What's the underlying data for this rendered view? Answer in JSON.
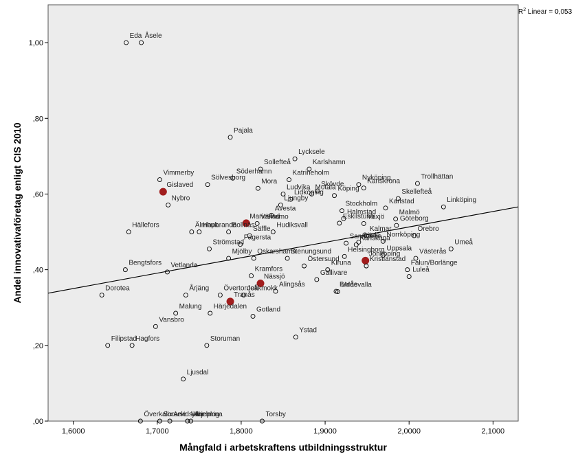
{
  "chart_data": {
    "type": "scatter",
    "title": "",
    "xlabel": "Mångfald i arbetskraftens utbildningsstruktur",
    "ylabel": "Andel innovativaföretag enligt CIS 2010",
    "xlim": [
      1.57,
      2.13
    ],
    "ylim": [
      0.0,
      1.1
    ],
    "x_ticks": [
      1.6,
      1.7,
      1.8,
      1.9,
      2.0,
      2.1
    ],
    "x_tick_labels": [
      "1,6000",
      "1,7000",
      "1,8000",
      "1,9000",
      "2,0000",
      "2,1000"
    ],
    "y_ticks": [
      0.0,
      0.2,
      0.4,
      0.6,
      0.8,
      1.0
    ],
    "y_tick_labels": [
      ",00",
      ",20",
      ",40",
      ",60",
      ",80",
      "1,00"
    ],
    "grid": false,
    "fit_line": {
      "type": "linear",
      "r2_text": "R² Linear = 0,053",
      "r2_sup": "2",
      "r2_rest": " Linear = 0,053",
      "r2_prefix": "R",
      "endpoints": [
        [
          1.57,
          0.338
        ],
        [
          2.13,
          0.566
        ]
      ]
    },
    "points": [
      {
        "label": "Eda",
        "x": 1.663,
        "y": 1.0
      },
      {
        "label": "Åsele",
        "x": 1.681,
        "y": 1.0
      },
      {
        "label": "Pajala",
        "x": 1.787,
        "y": 0.75
      },
      {
        "label": "Vimmerby",
        "x": 1.703,
        "y": 0.638
      },
      {
        "label": "Gislaved",
        "x": 1.707,
        "y": 0.606,
        "highlight": true
      },
      {
        "label": "Nybro",
        "x": 1.713,
        "y": 0.571
      },
      {
        "label": "Söderhamn",
        "x": 1.79,
        "y": 0.642
      },
      {
        "label": "Sölvesborg",
        "x": 1.76,
        "y": 0.625
      },
      {
        "label": "Sollefteå",
        "x": 1.823,
        "y": 0.666
      },
      {
        "label": "Mora",
        "x": 1.82,
        "y": 0.615
      },
      {
        "label": "Lycksele",
        "x": 1.864,
        "y": 0.693
      },
      {
        "label": "Karlshamn",
        "x": 1.881,
        "y": 0.666
      },
      {
        "label": "Katrineholm",
        "x": 1.857,
        "y": 0.638
      },
      {
        "label": "Ludvika",
        "x": 1.85,
        "y": 0.6
      },
      {
        "label": "Ljungby",
        "x": 1.847,
        "y": 0.571
      },
      {
        "label": "Skövde",
        "x": 1.891,
        "y": 0.608
      },
      {
        "label": "Motala",
        "x": 1.884,
        "y": 0.6
      },
      {
        "label": "Nyköping",
        "x": 1.94,
        "y": 0.625
      },
      {
        "label": "Karlskrona",
        "x": 1.946,
        "y": 0.616
      },
      {
        "label": "Köping",
        "x": 1.911,
        "y": 0.596
      },
      {
        "label": "Trollhättan",
        "x": 2.01,
        "y": 0.628
      },
      {
        "label": "Skellefteå",
        "x": 1.987,
        "y": 0.588
      },
      {
        "label": "Linköping",
        "x": 2.041,
        "y": 0.566
      },
      {
        "label": "Lidköping",
        "x": 1.859,
        "y": 0.586
      },
      {
        "label": "Stockholm",
        "x": 1.92,
        "y": 0.556
      },
      {
        "label": "Karlstad",
        "x": 1.972,
        "y": 0.563
      },
      {
        "label": "Avesta",
        "x": 1.836,
        "y": 0.544
      },
      {
        "label": "Halmstad",
        "x": 1.922,
        "y": 0.535
      },
      {
        "label": "Malmö",
        "x": 1.984,
        "y": 0.534
      },
      {
        "label": "Värnamo",
        "x": 1.819,
        "y": 0.522
      },
      {
        "label": "Mariestad",
        "x": 1.806,
        "y": 0.523,
        "highlight": true
      },
      {
        "label": "Hudiksvall",
        "x": 1.838,
        "y": 0.5
      },
      {
        "label": "Göteborg",
        "x": 1.985,
        "y": 0.517
      },
      {
        "label": "Hällefors",
        "x": 1.666,
        "y": 0.5
      },
      {
        "label": "Älmhult",
        "x": 1.741,
        "y": 0.5
      },
      {
        "label": "Bollnäs",
        "x": 1.785,
        "y": 0.5
      },
      {
        "label": "Haparanda",
        "x": 1.75,
        "y": 0.5
      },
      {
        "label": "Eskilstuna",
        "x": 1.917,
        "y": 0.523
      },
      {
        "label": "Växjö",
        "x": 1.946,
        "y": 0.522
      },
      {
        "label": "Kalmar",
        "x": 1.949,
        "y": 0.49
      },
      {
        "label": "Örebro",
        "x": 2.006,
        "y": 0.49
      },
      {
        "label": "Säffle",
        "x": 1.81,
        "y": 0.49
      },
      {
        "label": "Sandviken",
        "x": 1.925,
        "y": 0.47
      },
      {
        "label": "Strömstad",
        "x": 1.762,
        "y": 0.455
      },
      {
        "label": "Karlskoga",
        "x": 1.937,
        "y": 0.466
      },
      {
        "label": "Gävle",
        "x": 1.94,
        "y": 0.473
      },
      {
        "label": "Umeå",
        "x": 2.05,
        "y": 0.455
      },
      {
        "label": "Fagersta",
        "x": 1.799,
        "y": 0.467
      },
      {
        "label": "Norrköping",
        "x": 1.969,
        "y": 0.475
      },
      {
        "label": "Stenungsund",
        "x": 1.855,
        "y": 0.43
      },
      {
        "label": "Helsingborg",
        "x": 1.923,
        "y": 0.435
      },
      {
        "label": "Västerås",
        "x": 2.008,
        "y": 0.43
      },
      {
        "label": "Mjölby",
        "x": 1.785,
        "y": 0.43
      },
      {
        "label": "Oskarshamn",
        "x": 1.815,
        "y": 0.43
      },
      {
        "label": "Uppsala",
        "x": 1.969,
        "y": 0.438
      },
      {
        "label": "Bengtsfors",
        "x": 1.662,
        "y": 0.4
      },
      {
        "label": "Vetlanda",
        "x": 1.712,
        "y": 0.394
      },
      {
        "label": "Östersund",
        "x": 1.875,
        "y": 0.41
      },
      {
        "label": "Kiruna",
        "x": 1.903,
        "y": 0.4
      },
      {
        "label": "Jönköping",
        "x": 1.948,
        "y": 0.424,
        "highlight": true
      },
      {
        "label": "Falun/Borlänge",
        "x": 1.998,
        "y": 0.4
      },
      {
        "label": "Kramfors",
        "x": 1.812,
        "y": 0.384
      },
      {
        "label": "Nässjö",
        "x": 1.823,
        "y": 0.364,
        "highlight": true
      },
      {
        "label": "Gällivare",
        "x": 1.89,
        "y": 0.374
      },
      {
        "label": "Kristianstad",
        "x": 1.949,
        "y": 0.41
      },
      {
        "label": "Luleå",
        "x": 2.0,
        "y": 0.382
      },
      {
        "label": "Dorotea",
        "x": 1.634,
        "y": 0.333
      },
      {
        "label": "Årjäng",
        "x": 1.734,
        "y": 0.333
      },
      {
        "label": "Övertorneå",
        "x": 1.775,
        "y": 0.333
      },
      {
        "label": "Jokkmokk",
        "x": 1.803,
        "y": 0.333
      },
      {
        "label": "Alingsås",
        "x": 1.841,
        "y": 0.343
      },
      {
        "label": "Borås",
        "x": 1.913,
        "y": 0.343
      },
      {
        "label": "Uddevalla",
        "x": 1.915,
        "y": 0.342
      },
      {
        "label": "Tranås",
        "x": 1.787,
        "y": 0.316,
        "highlight": true
      },
      {
        "label": "Malung",
        "x": 1.722,
        "y": 0.285
      },
      {
        "label": "Härjedalen",
        "x": 1.763,
        "y": 0.285
      },
      {
        "label": "Gotland",
        "x": 1.814,
        "y": 0.277
      },
      {
        "label": "Vansbro",
        "x": 1.698,
        "y": 0.25
      },
      {
        "label": "Ystad",
        "x": 1.865,
        "y": 0.222
      },
      {
        "label": "Filipstad",
        "x": 1.641,
        "y": 0.2
      },
      {
        "label": "Hagfors",
        "x": 1.67,
        "y": 0.2
      },
      {
        "label": "Storuman",
        "x": 1.759,
        "y": 0.2
      },
      {
        "label": "Ljusdal",
        "x": 1.731,
        "y": 0.111
      },
      {
        "label": "Överkalix",
        "x": 1.68,
        "y": 0.0
      },
      {
        "label": "Sorsele",
        "x": 1.703,
        "y": 0.0
      },
      {
        "label": "Arvidsjaur",
        "x": 1.715,
        "y": 0.0
      },
      {
        "label": "Vilhelmina",
        "x": 1.736,
        "y": 0.0
      },
      {
        "label": "Arjeplog",
        "x": 1.74,
        "y": 0.0
      },
      {
        "label": "Torsby",
        "x": 1.825,
        "y": 0.0
      }
    ],
    "colors": {
      "plot_bg": "#ececec",
      "point_highlight": "#a11d1d",
      "line": "#000000"
    }
  }
}
